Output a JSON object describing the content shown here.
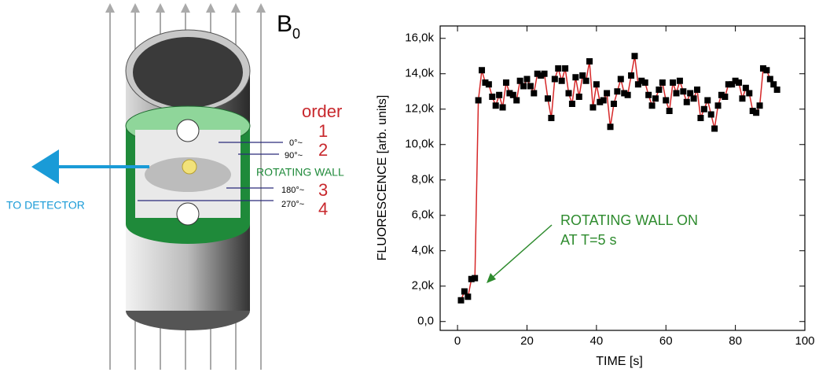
{
  "diagram": {
    "field_label": "B",
    "field_subscript": "0",
    "order_title": "order",
    "orders": [
      "1",
      "2",
      "3",
      "4"
    ],
    "angles": [
      "0°~",
      "90°~",
      "180°~",
      "270°~"
    ],
    "wall_label": "ROTATING WALL",
    "detector_label": "TO DETECTOR"
  },
  "chart_data": {
    "type": "line",
    "x_label": "TIME [s]",
    "y_label": "FLUORESCENCE [arb. units]",
    "annotation": [
      "ROTATING WALL ON",
      "AT T=5 s"
    ],
    "annotation_color": "#2e8b2e",
    "xlim": [
      -5,
      100
    ],
    "ylim": [
      -500,
      16700
    ],
    "xticks": [
      0,
      20,
      40,
      60,
      80,
      100
    ],
    "yticks": [
      {
        "value": 0,
        "label": "0,0"
      },
      {
        "value": 2000,
        "label": "2,0k"
      },
      {
        "value": 4000,
        "label": "4,0k"
      },
      {
        "value": 6000,
        "label": "6,0k"
      },
      {
        "value": 8000,
        "label": "8,0k"
      },
      {
        "value": 10000,
        "label": "10,0k"
      },
      {
        "value": 12000,
        "label": "12,0k"
      },
      {
        "value": 14000,
        "label": "14,0k"
      },
      {
        "value": 16000,
        "label": "16,0k"
      }
    ],
    "x": [
      1,
      2,
      3,
      4,
      5,
      6,
      7,
      8,
      9,
      10,
      11,
      12,
      13,
      14,
      15,
      16,
      17,
      18,
      19,
      20,
      21,
      22,
      23,
      24,
      25,
      26,
      27,
      28,
      29,
      30,
      31,
      32,
      33,
      34,
      35,
      36,
      37,
      38,
      39,
      40,
      41,
      42,
      43,
      44,
      45,
      46,
      47,
      48,
      49,
      50,
      51,
      52,
      53,
      54,
      55,
      56,
      57,
      58,
      59,
      60,
      61,
      62,
      63,
      64,
      65,
      66,
      67,
      68,
      69,
      70,
      71,
      72,
      73,
      74,
      75,
      76,
      77,
      78,
      79,
      80,
      81,
      82,
      83,
      84,
      85,
      86,
      87,
      88,
      89,
      90,
      91,
      92
    ],
    "series": [
      {
        "color": "#d62728",
        "marker_color": "#000000",
        "values": [
          1200,
          1700,
          1400,
          2400,
          2450,
          12500,
          14200,
          13500,
          13400,
          12700,
          12200,
          12800,
          12100,
          13500,
          12900,
          12800,
          12500,
          13600,
          13300,
          13700,
          13300,
          12900,
          14000,
          13900,
          14000,
          12600,
          11500,
          13700,
          14300,
          13600,
          14300,
          12900,
          12300,
          13800,
          12700,
          13900,
          13600,
          14700,
          12100,
          13400,
          12400,
          12500,
          12900,
          11000,
          12300,
          13000,
          13700,
          12900,
          12800,
          13900,
          15000,
          13400,
          13600,
          13500,
          12800,
          12200,
          12600,
          13100,
          13500,
          12500,
          11900,
          13500,
          12900,
          13600,
          13000,
          12400,
          12900,
          12600,
          13100,
          11500,
          12000,
          12500,
          11700,
          10900,
          12200,
          12800,
          12700,
          13400,
          13400,
          13600,
          13500,
          12600,
          13200,
          12900,
          11900,
          11800,
          12200,
          14300,
          14200,
          13700,
          13400,
          13100
        ]
      }
    ]
  }
}
